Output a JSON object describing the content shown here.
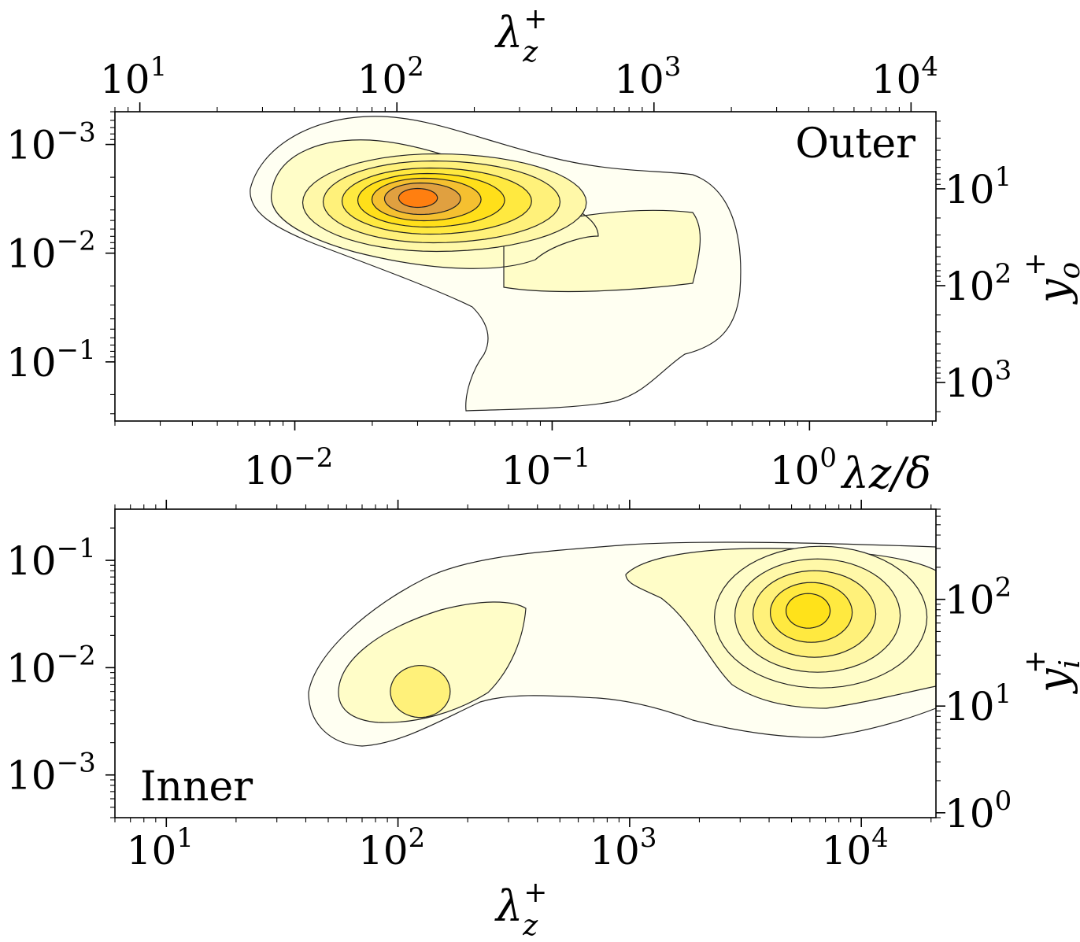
{
  "chart_data": [
    {
      "type": "contour",
      "panel_label": "Outer",
      "x_bottom": {
        "label": "λz/δ",
        "scale": "log",
        "range": [
          0.002,
          3.1
        ],
        "tick_labels": [
          {
            "value": 0.01,
            "base": "10",
            "exp": "−2"
          },
          {
            "value": 0.1,
            "base": "10",
            "exp": "−1"
          },
          {
            "value": 1,
            "base": "10",
            "exp": "0"
          }
        ]
      },
      "x_top": {
        "label_main": "λ",
        "label_sub": "z",
        "label_sup": "+",
        "scale": "log",
        "range": [
          8,
          12500
        ],
        "tick_labels": [
          {
            "value": 10,
            "base": "10",
            "exp": "1"
          },
          {
            "value": 100,
            "base": "10",
            "exp": "2"
          },
          {
            "value": 1000,
            "base": "10",
            "exp": "3"
          },
          {
            "value": 10000,
            "base": "10",
            "exp": "4"
          }
        ]
      },
      "y_left": {
        "scale": "log",
        "inverted": true,
        "range": [
          0.0005,
          0.35
        ],
        "tick_labels": [
          {
            "value": 0.001,
            "base": "10",
            "exp": "−3"
          },
          {
            "value": 0.01,
            "base": "10",
            "exp": "−2"
          },
          {
            "value": 0.1,
            "base": "10",
            "exp": "−1"
          }
        ]
      },
      "y_right": {
        "label_main": "y",
        "label_sub": "o",
        "label_sup": "+",
        "scale": "log",
        "inverted": true,
        "range": [
          1.6,
          2500
        ],
        "tick_labels": [
          {
            "value": 10,
            "base": "10",
            "exp": "1"
          },
          {
            "value": 100,
            "base": "10",
            "exp": "2"
          },
          {
            "value": 1000,
            "base": "10",
            "exp": "3"
          }
        ]
      },
      "peak": {
        "x": 0.03,
        "y": 0.003
      },
      "levels": 9,
      "colormap": [
        "#fffff2",
        "#fffdc8",
        "#fff8a8",
        "#fff17a",
        "#ffe940",
        "#ffdf1a",
        "#f5c030",
        "#e0a040",
        "#ff7f10"
      ]
    },
    {
      "type": "contour",
      "panel_label": "Inner",
      "x_bottom": {
        "label_main": "λ",
        "label_sub": "z",
        "label_sup": "+",
        "scale": "log",
        "range": [
          6,
          21000
        ],
        "tick_labels": [
          {
            "value": 10,
            "base": "10",
            "exp": "1"
          },
          {
            "value": 100,
            "base": "10",
            "exp": "2"
          },
          {
            "value": 1000,
            "base": "10",
            "exp": "3"
          },
          {
            "value": 10000,
            "base": "10",
            "exp": "4"
          }
        ]
      },
      "y_left": {
        "scale": "log",
        "range": [
          0.0004,
          0.3
        ],
        "tick_labels": [
          {
            "value": 0.001,
            "base": "10",
            "exp": "−3"
          },
          {
            "value": 0.01,
            "base": "10",
            "exp": "−2"
          },
          {
            "value": 0.1,
            "base": "10",
            "exp": "−1"
          }
        ]
      },
      "y_right": {
        "label_main": "y",
        "label_sub": "i",
        "label_sup": "+",
        "scale": "log",
        "range": [
          0.9,
          700
        ],
        "tick_labels": [
          {
            "value": 1,
            "base": "10",
            "exp": "0"
          },
          {
            "value": 10,
            "base": "10",
            "exp": "1"
          },
          {
            "value": 100,
            "base": "10",
            "exp": "2"
          }
        ]
      },
      "peaks": [
        {
          "x": 120,
          "y": 0.006
        },
        {
          "x": 5800,
          "y": 0.035
        }
      ],
      "levels": 6,
      "colormap": [
        "#fffff2",
        "#fffdc8",
        "#fff8a8",
        "#fff17a",
        "#ffe940",
        "#ffe21a"
      ]
    }
  ]
}
